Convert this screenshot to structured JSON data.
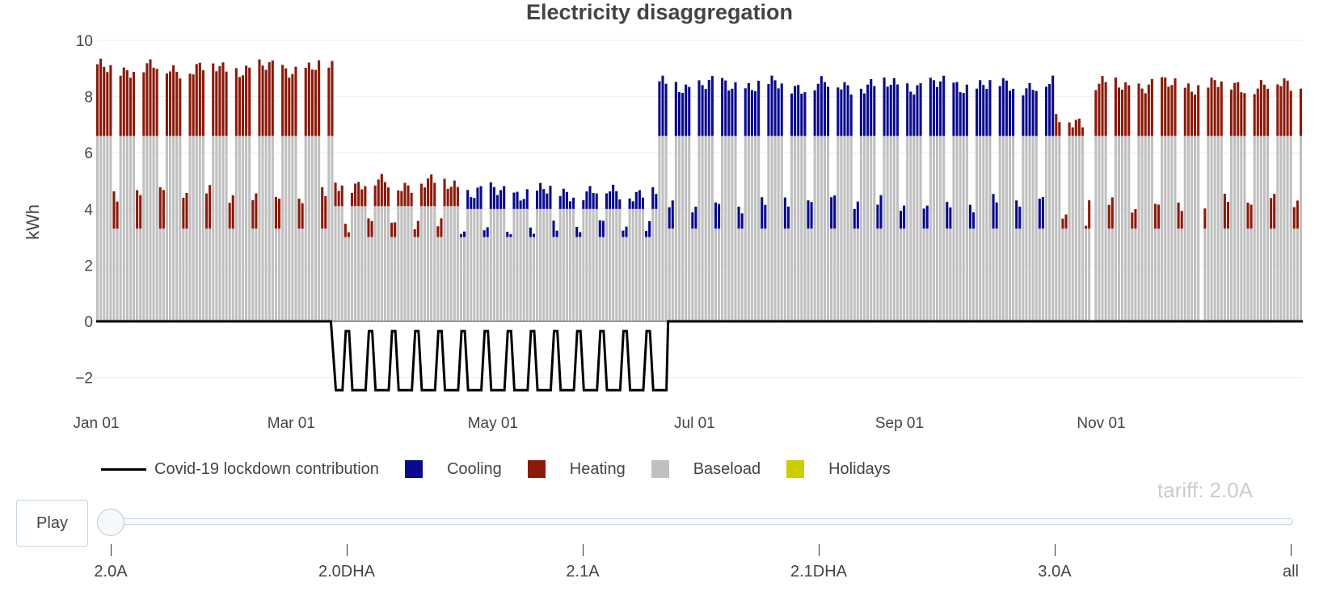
{
  "chart_data": {
    "type": "bar",
    "stacked": true,
    "title": "Electricity disaggregation",
    "xlabel": "",
    "ylabel": "kWh",
    "ylim": [
      -2.5,
      10
    ],
    "yticks": [
      10,
      8,
      6,
      4,
      2,
      0,
      -2
    ],
    "ytick_labels": [
      "10",
      "8",
      "6",
      "4",
      "2",
      "0",
      "−2"
    ],
    "xlim_days": [
      0,
      365
    ],
    "xticks": [
      {
        "day": 0,
        "label": "Jan 01"
      },
      {
        "day": 59,
        "label": "Mar 01"
      },
      {
        "day": 120,
        "label": "May 01"
      },
      {
        "day": 181,
        "label": "Jul 01"
      },
      {
        "day": 243,
        "label": "Sep 01"
      },
      {
        "day": 304,
        "label": "Nov 01"
      }
    ],
    "days": 365,
    "gaps_days": [
      301,
      334
    ],
    "segments": [
      {
        "start": 0,
        "end": 72,
        "base_week": 6.6,
        "base_we": 3.3,
        "heat_week": 2.4,
        "heat_we": 1.2,
        "cool_week": 0,
        "cool_we": 0
      },
      {
        "start": 72,
        "end": 110,
        "base_week": 4.1,
        "base_we": 3.0,
        "heat_week": 0.8,
        "heat_we": 0.4,
        "cool_week": 0,
        "cool_we": 0
      },
      {
        "start": 110,
        "end": 170,
        "base_week": 4.0,
        "base_we": 3.0,
        "heat_week": 0,
        "heat_we": 0,
        "cool_week": 0.6,
        "cool_we": 0.3
      },
      {
        "start": 170,
        "end": 290,
        "base_week": 6.6,
        "base_we": 3.3,
        "heat_week": 0,
        "heat_we": 0,
        "cool_week": 1.8,
        "cool_we": 0.9
      },
      {
        "start": 290,
        "end": 300,
        "base_week": 6.6,
        "base_we": 3.3,
        "heat_week": 0.6,
        "heat_we": 0.3,
        "cool_week": 0,
        "cool_we": 0
      },
      {
        "start": 300,
        "end": 365,
        "base_week": 6.6,
        "base_we": 3.3,
        "heat_week": 1.8,
        "heat_we": 0.9,
        "cool_week": 0,
        "cool_we": 0
      }
    ],
    "covid_line": {
      "name": "Covid-19 lockdown contribution",
      "start_day": 72,
      "end_day": 172,
      "weekday_value": -2.45,
      "weekend_value": -0.35
    },
    "colors": {
      "Cooling": "#0a0a8c",
      "Heating": "#8b1a0a",
      "Baseload": "#c0c0c0",
      "Holidays": "#cccc00",
      "covid": "#000000",
      "grid": "#eeeeee"
    },
    "legend": [
      {
        "name": "Covid-19 lockdown contribution",
        "kind": "line"
      },
      {
        "name": "Cooling",
        "kind": "swatch",
        "color": "#0a0a8c"
      },
      {
        "name": "Heating",
        "kind": "swatch",
        "color": "#8b1a0a"
      },
      {
        "name": "Baseload",
        "kind": "swatch",
        "color": "#c0c0c0"
      },
      {
        "name": "Holidays",
        "kind": "swatch",
        "color": "#cccc00"
      }
    ]
  },
  "slider": {
    "current_prefix": "tariff: ",
    "current_value": "2.0A",
    "play_label": "Play",
    "steps": [
      "2.0A",
      "2.0DHA",
      "2.1A",
      "2.1DHA",
      "3.0A",
      "all"
    ],
    "active_index": 0
  }
}
